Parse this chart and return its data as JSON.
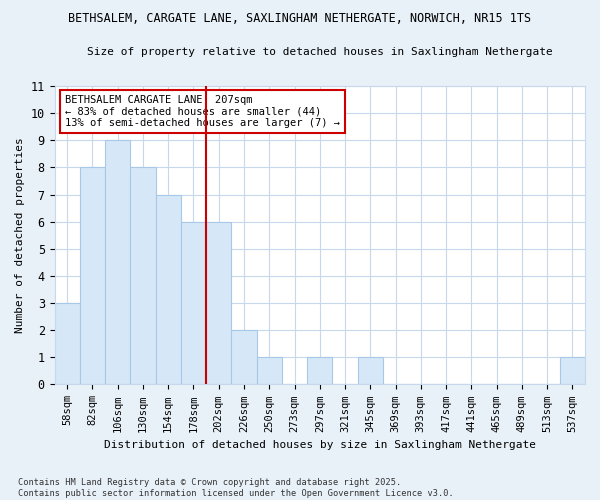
{
  "title": "BETHSALEM, CARGATE LANE, SAXLINGHAM NETHERGATE, NORWICH, NR15 1TS",
  "subtitle": "Size of property relative to detached houses in Saxlingham Nethergate",
  "xlabel": "Distribution of detached houses by size in Saxlingham Nethergate",
  "ylabel": "Number of detached properties",
  "categories": [
    "58sqm",
    "82sqm",
    "106sqm",
    "130sqm",
    "154sqm",
    "178sqm",
    "202sqm",
    "226sqm",
    "250sqm",
    "273sqm",
    "297sqm",
    "321sqm",
    "345sqm",
    "369sqm",
    "393sqm",
    "417sqm",
    "441sqm",
    "465sqm",
    "489sqm",
    "513sqm",
    "537sqm"
  ],
  "values": [
    3,
    8,
    9,
    8,
    7,
    6,
    6,
    2,
    1,
    0,
    1,
    0,
    1,
    0,
    0,
    0,
    0,
    0,
    0,
    0,
    1
  ],
  "bar_color": "#d6e8f7",
  "bar_edge_color": "#a8c8e8",
  "vline_x_index": 6,
  "vline_color": "#cc0000",
  "annotation_box_text": "BETHSALEM CARGATE LANE: 207sqm\n← 83% of detached houses are smaller (44)\n13% of semi-detached houses are larger (7) →",
  "annotation_box_color": "#cc0000",
  "ylim": [
    0,
    11
  ],
  "yticks": [
    0,
    1,
    2,
    3,
    4,
    5,
    6,
    7,
    8,
    9,
    10,
    11
  ],
  "footer": "Contains HM Land Registry data © Crown copyright and database right 2025.\nContains public sector information licensed under the Open Government Licence v3.0.",
  "bg_color": "#e8f0f8",
  "plot_bg_color": "#ffffff",
  "grid_color": "#c8d8ec"
}
